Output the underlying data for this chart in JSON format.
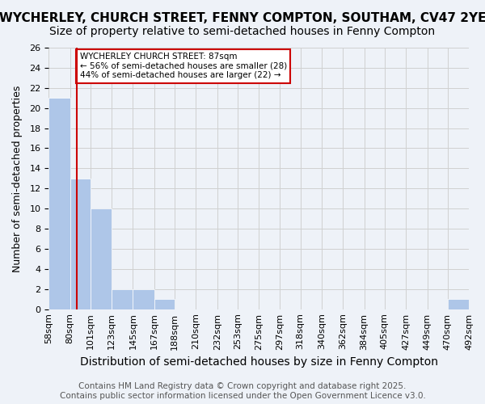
{
  "title": "WYCHERLEY, CHURCH STREET, FENNY COMPTON, SOUTHAM, CV47 2YE",
  "subtitle": "Size of property relative to semi-detached houses in Fenny Compton",
  "xlabel": "Distribution of semi-detached houses by size in Fenny Compton",
  "ylabel": "Number of semi-detached properties",
  "bin_labels": [
    "58sqm",
    "80sqm",
    "101sqm",
    "123sqm",
    "145sqm",
    "167sqm",
    "188sqm",
    "210sqm",
    "232sqm",
    "253sqm",
    "275sqm",
    "297sqm",
    "318sqm",
    "340sqm",
    "362sqm",
    "384sqm",
    "405sqm",
    "427sqm",
    "449sqm",
    "470sqm",
    "492sqm"
  ],
  "bin_edges": [
    58,
    80,
    101,
    123,
    145,
    167,
    188,
    210,
    232,
    253,
    275,
    297,
    318,
    340,
    362,
    384,
    405,
    427,
    449,
    470,
    492
  ],
  "counts": [
    21,
    13,
    10,
    2,
    2,
    1,
    0,
    0,
    0,
    0,
    0,
    0,
    0,
    0,
    0,
    0,
    0,
    0,
    0,
    1
  ],
  "bar_color": "#aec6e8",
  "property_size": 87,
  "red_line_color": "#cc0000",
  "annotation_text": "WYCHERLEY CHURCH STREET: 87sqm\n← 56% of semi-detached houses are smaller (28)\n44% of semi-detached houses are larger (22) →",
  "annotation_box_edgecolor": "#cc0000",
  "annotation_box_facecolor": "#ffffff",
  "ylim": [
    0,
    26
  ],
  "yticks": [
    0,
    2,
    4,
    6,
    8,
    10,
    12,
    14,
    16,
    18,
    20,
    22,
    24,
    26
  ],
  "grid_color": "#d0d0d0",
  "background_color": "#eef2f8",
  "footer": "Contains HM Land Registry data © Crown copyright and database right 2025.\nContains public sector information licensed under the Open Government Licence v3.0.",
  "title_fontsize": 11,
  "subtitle_fontsize": 10,
  "xlabel_fontsize": 10,
  "ylabel_fontsize": 9,
  "tick_fontsize": 8,
  "footer_fontsize": 7.5
}
